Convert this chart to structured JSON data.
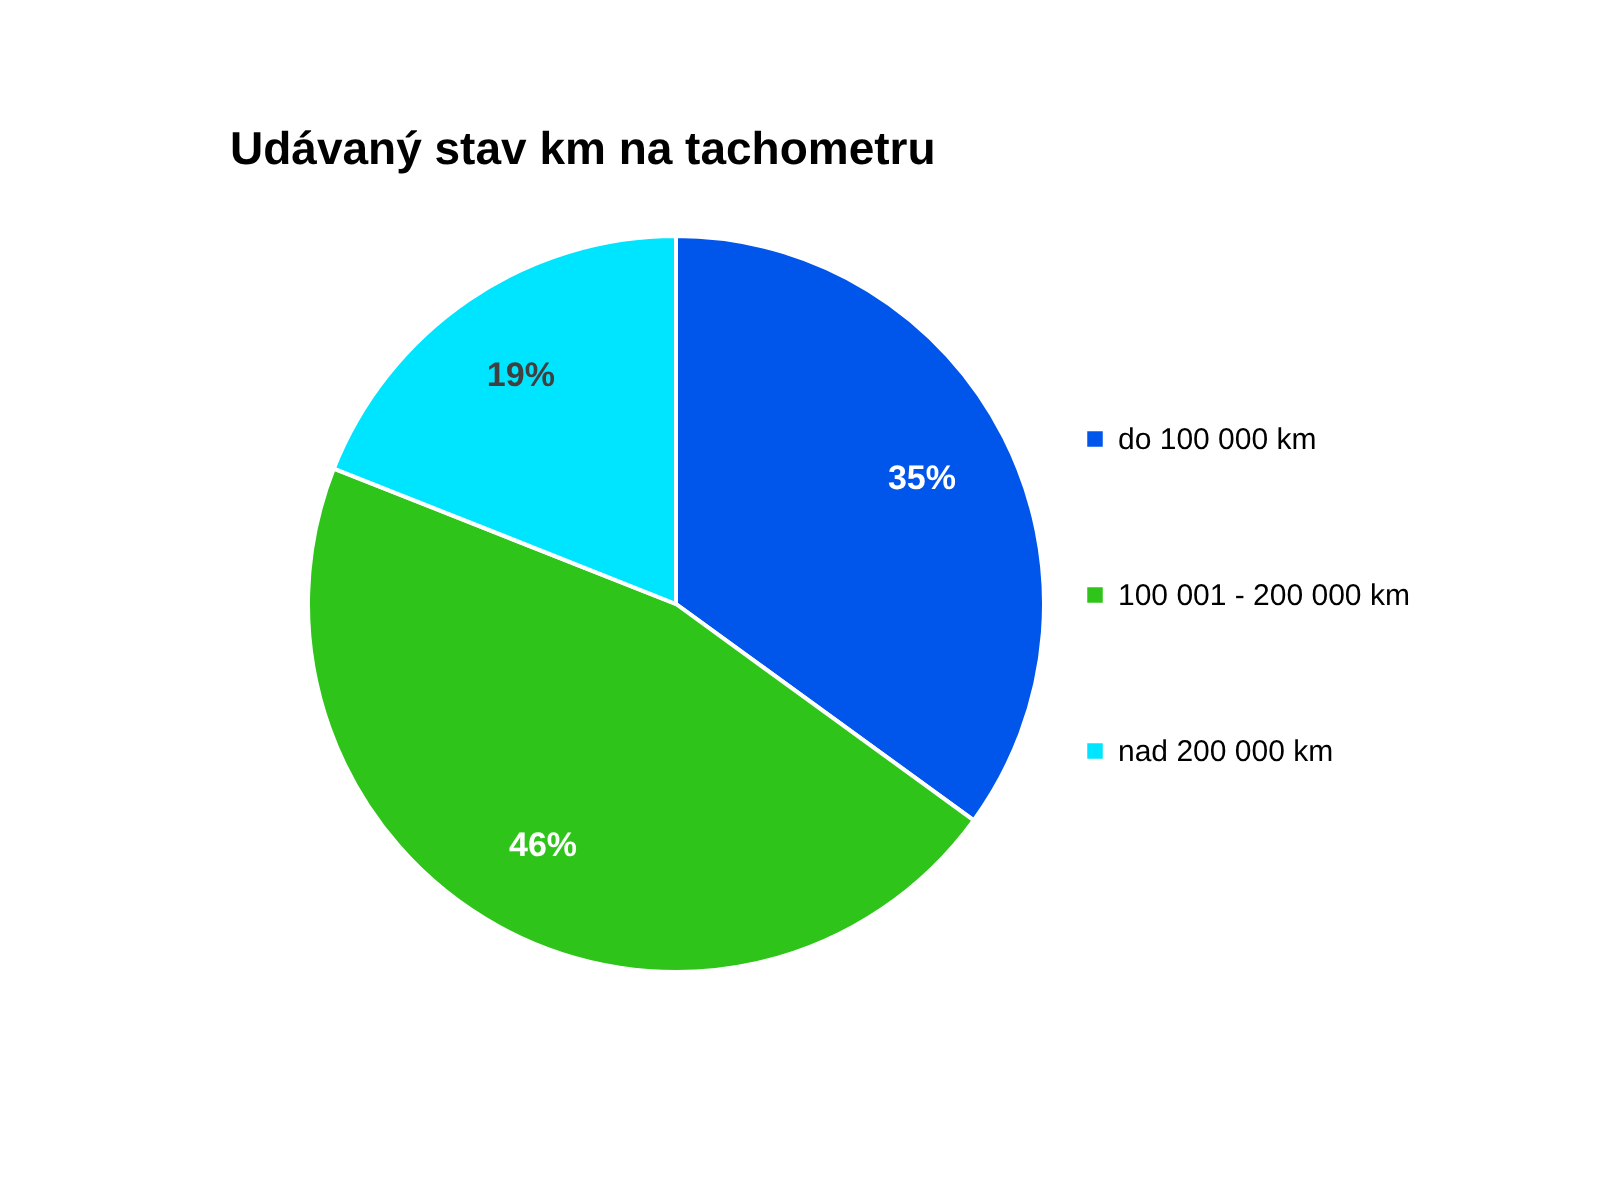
{
  "chart_data": {
    "type": "pie",
    "title": "Udávaný stav km na tachometru",
    "categories": [
      "do 100 000 km",
      "100 001 - 200 000 km",
      "nad 200 000 km"
    ],
    "values": [
      35,
      46,
      19
    ],
    "colors": [
      "#0055ea",
      "#2ec41a",
      "#00e5ff"
    ],
    "value_labels": [
      "35%",
      "46%",
      "19%"
    ],
    "legend": "right"
  }
}
